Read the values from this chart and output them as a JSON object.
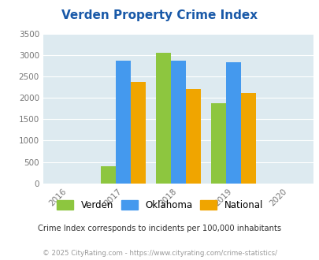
{
  "title": "Verden Property Crime Index",
  "title_color": "#1959a8",
  "years": [
    2016,
    2017,
    2018,
    2019,
    2020
  ],
  "bar_years": [
    2017,
    2018,
    2019
  ],
  "verden": [
    400,
    3050,
    1870
  ],
  "oklahoma": [
    2880,
    2880,
    2830
  ],
  "national": [
    2380,
    2200,
    2110
  ],
  "colors": {
    "verden": "#8dc63f",
    "oklahoma": "#4499ee",
    "national": "#f0a500"
  },
  "ylim": [
    0,
    3500
  ],
  "yticks": [
    0,
    500,
    1000,
    1500,
    2000,
    2500,
    3000,
    3500
  ],
  "bg_color": "#ddeaf0",
  "legend_labels": [
    "Verden",
    "Oklahoma",
    "National"
  ],
  "footnote1": "Crime Index corresponds to incidents per 100,000 inhabitants",
  "footnote2": "© 2025 CityRating.com - https://www.cityrating.com/crime-statistics/",
  "bar_width": 0.27,
  "footnote1_color": "#333333",
  "footnote2_color": "#999999"
}
